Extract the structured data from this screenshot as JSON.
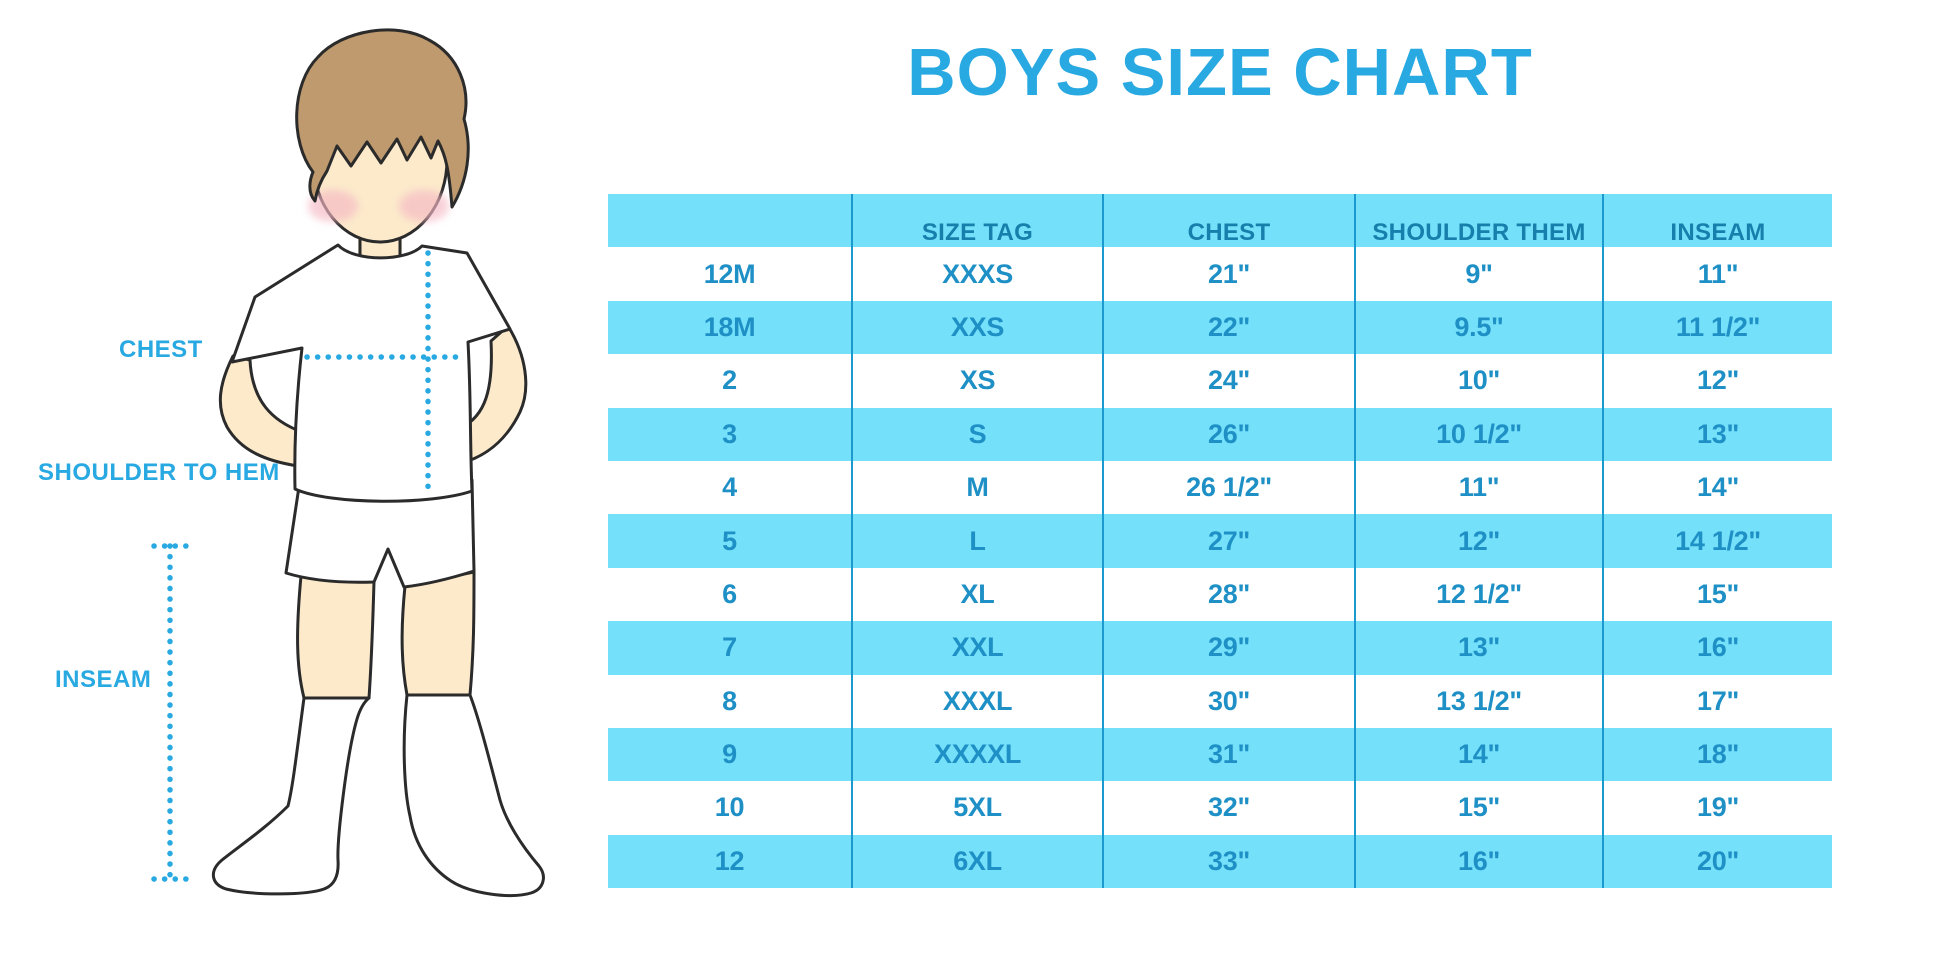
{
  "title": "BOYS SIZE CHART",
  "figure": {
    "description": "cartoon boy in white t-shirt, shorts and knee socks with dotted measurement guides",
    "labels": {
      "chest": "CHEST",
      "shoulder_to_hem": "SHOULDER TO HEM",
      "inseam": "INSEAM"
    }
  },
  "chart_data": {
    "type": "table",
    "title": "BOYS SIZE CHART",
    "headers": [
      "",
      "SIZE TAG",
      "CHEST",
      "SHOULDER THEM",
      "INSEAM"
    ],
    "rows": [
      [
        "12M",
        "XXXS",
        "21\"",
        "9\"",
        "11\""
      ],
      [
        "18M",
        "XXS",
        "22\"",
        "9.5\"",
        "11 1/2\""
      ],
      [
        "2",
        "XS",
        "24\"",
        "10\"",
        "12\""
      ],
      [
        "3",
        "S",
        "26\"",
        "10 1/2\"",
        "13\""
      ],
      [
        "4",
        "M",
        "26 1/2\"",
        "11\"",
        "14\""
      ],
      [
        "5",
        "L",
        "27\"",
        "12\"",
        "14 1/2\""
      ],
      [
        "6",
        "XL",
        "28\"",
        "12 1/2\"",
        "15\""
      ],
      [
        "7",
        "XXL",
        "29\"",
        "13\"",
        "16\""
      ],
      [
        "8",
        "XXXL",
        "30\"",
        "13 1/2\"",
        "17\""
      ],
      [
        "9",
        "XXXXL",
        "31\"",
        "14\"",
        "18\""
      ],
      [
        "10",
        "5XL",
        "32\"",
        "15\"",
        "19\""
      ],
      [
        "12",
        "6XL",
        "33\"",
        "16\"",
        "20\""
      ]
    ],
    "units": "inches",
    "layout": {
      "header_fill": "#74E0F9",
      "row_striping": "white, cyan alternating starting white",
      "grid": "vertical dividers only"
    }
  },
  "colors": {
    "accent_blue": "#29A9E1",
    "row_cyan": "#74E0F9",
    "cell_text": "#1E90C6",
    "header_text": "#187FAC",
    "divider": "#1B9AD0",
    "skin": "#FCEACB",
    "hair": "#BF9A6E",
    "cheek": "#F5B8C4",
    "outline": "#2B2B2B"
  }
}
